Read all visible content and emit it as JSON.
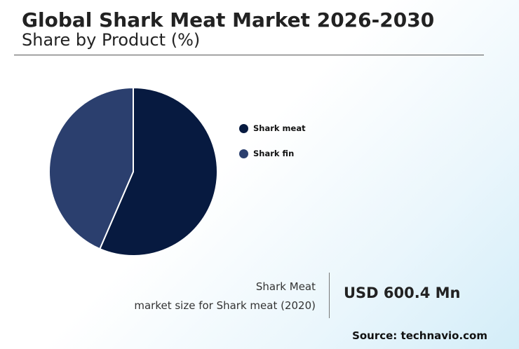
{
  "header": {
    "title": "Global Shark Meat Market 2026-2030",
    "subtitle": "Share by Product (%)"
  },
  "chart_data": {
    "type": "pie",
    "categories": [
      "Shark meat",
      "Shark fin"
    ],
    "values": [
      56.5,
      43.5
    ],
    "colors": [
      "#071a40",
      "#2b3f6e"
    ],
    "legend_position": "right"
  },
  "kpi": {
    "label_line1": "Shark Meat",
    "label_line2": "market size for Shark meat (2020)",
    "value": "USD 600.4 Mn"
  },
  "footer": {
    "source": "Source: technavio.com"
  }
}
